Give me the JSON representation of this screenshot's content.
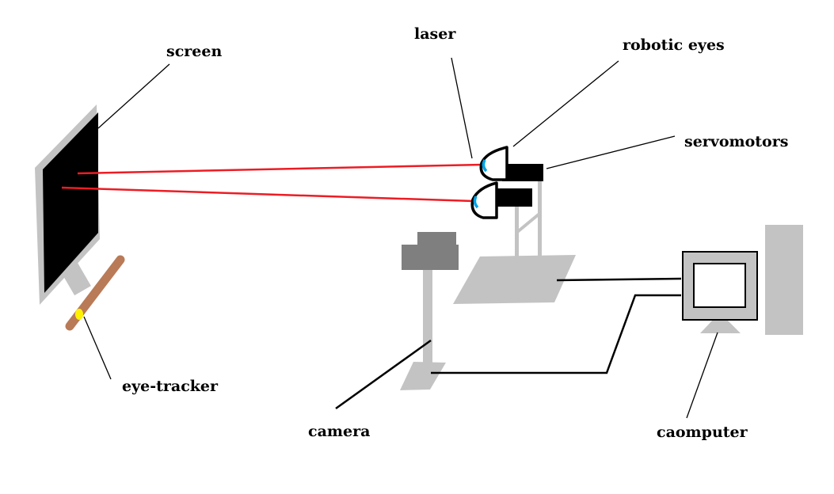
{
  "labels": {
    "screen": "screen",
    "laser": "laser",
    "robotic_eyes": "robotic eyes",
    "servomotors": "servomotors",
    "eye_tracker": "eye-tracker",
    "camera": "camera",
    "computer": "caomputer"
  },
  "colors": {
    "background": "#ffffff",
    "screen_bezel": "#c3c3c3",
    "screen_panel": "#000000",
    "laser_beam": "#ed1c24",
    "eye_iris": "#00a2e8",
    "tracker_bar": "#b97a57",
    "tracker_sensor": "#fff200",
    "equipment_gray": "#c3c3c3",
    "camera_body": "#7f7f7f",
    "cable": "#000000"
  },
  "icons": [
    "monitor-icon",
    "robotic-eye-icon",
    "servomotor-icon",
    "camera-icon",
    "computer-icon"
  ]
}
